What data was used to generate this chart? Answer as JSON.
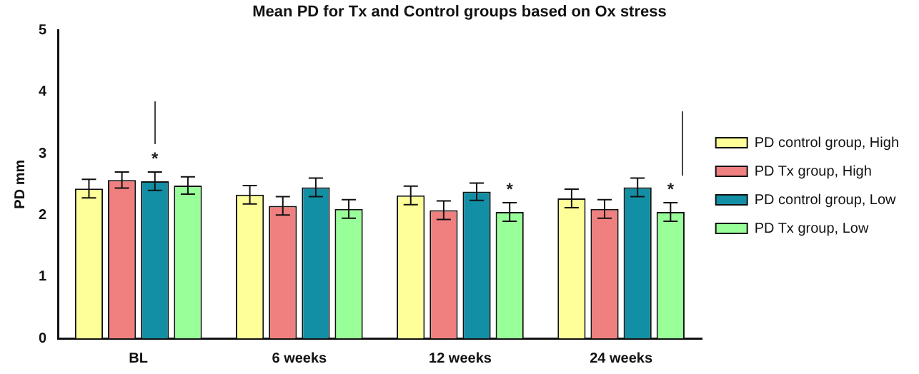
{
  "chart_data": {
    "type": "bar",
    "title": "Mean PD for Tx and Control groups based on Ox stress",
    "ylabel": "PD mm",
    "categories": [
      "BL",
      "6 weeks",
      "12 weeks",
      "24 weeks"
    ],
    "series": [
      {
        "name": "PD control group, High",
        "color": "#ffff99",
        "values": [
          2.43,
          2.33,
          2.32,
          2.27
        ],
        "errors": [
          0.15,
          0.15,
          0.15,
          0.15
        ]
      },
      {
        "name": "PD Tx group, High",
        "color": "#f08080",
        "values": [
          2.57,
          2.15,
          2.08,
          2.1
        ],
        "errors": [
          0.13,
          0.15,
          0.15,
          0.15
        ]
      },
      {
        "name": "PD control group, Low",
        "color": "#138fa5",
        "values": [
          2.55,
          2.45,
          2.38,
          2.45
        ],
        "errors": [
          0.15,
          0.15,
          0.14,
          0.15
        ]
      },
      {
        "name": "PD Tx group, Low",
        "color": "#99ff99",
        "values": [
          2.48,
          2.1,
          2.05,
          2.05
        ],
        "errors": [
          0.14,
          0.15,
          0.15,
          0.15
        ]
      }
    ],
    "ylim": [
      0,
      5
    ],
    "yticks": [
      0,
      1,
      2,
      3,
      4,
      5
    ],
    "grid": false,
    "legend": "right",
    "annotations": [
      {
        "text": "*",
        "x": "BL",
        "y": 2.55
      },
      {
        "text": "*",
        "x": "12 weeks",
        "y": 2.2
      },
      {
        "text": "*",
        "x": "24 weeks",
        "y": 2.2
      }
    ]
  }
}
